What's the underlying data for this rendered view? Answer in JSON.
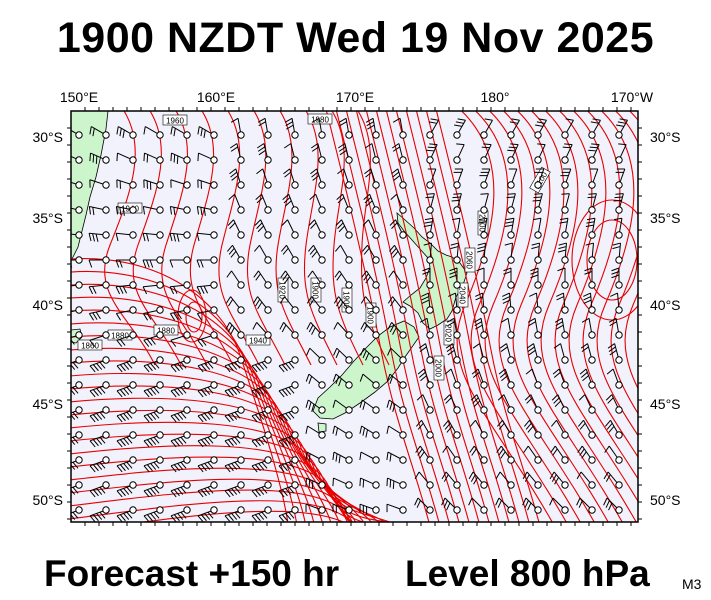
{
  "title": "1900 NZDT Wed 19 Nov 2025",
  "forecast_label": "Forecast +150 hr",
  "level_label": "Level 800 hPa",
  "model_tag": "M3",
  "lon_labels": [
    "150°E",
    "160°E",
    "170°E",
    "180°",
    "170°W"
  ],
  "lat_labels": [
    "30°S",
    "35°S",
    "40°S",
    "45°S",
    "50°S"
  ],
  "contour_labels": [
    "1960",
    "1940",
    "1920",
    "1900",
    "1880",
    "1860",
    "2100",
    "2080",
    "2060",
    "2040",
    "2020",
    "2000",
    "1980"
  ],
  "colors": {
    "ocean": "#f2f2fc",
    "land": "#ccf5cc",
    "contour": "#e60000",
    "wind": "#000000",
    "frame": "#000000"
  }
}
